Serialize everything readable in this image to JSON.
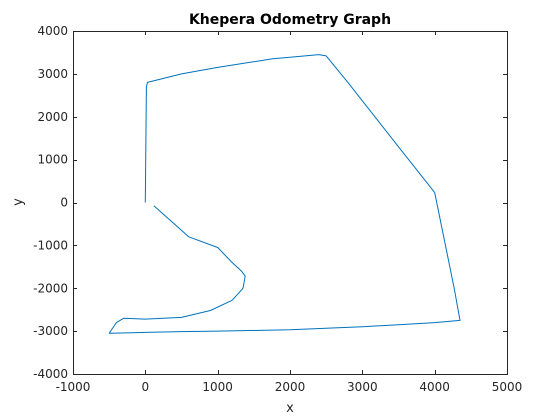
{
  "chart_data": {
    "type": "line",
    "title": "Khepera Odometry Graph",
    "xlabel": "x",
    "ylabel": "y",
    "xlim": [
      -1000,
      5000
    ],
    "ylim": [
      -4000,
      4000
    ],
    "xticks": [
      -1000,
      0,
      1000,
      2000,
      3000,
      4000,
      5000
    ],
    "yticks": [
      -4000,
      -3000,
      -2000,
      -1000,
      0,
      1000,
      2000,
      3000,
      4000
    ],
    "xtick_labels": [
      "-1000",
      "0",
      "1000",
      "2000",
      "3000",
      "4000",
      "5000"
    ],
    "ytick_labels": [
      "-4000",
      "-3000",
      "-2000",
      "-1000",
      "0",
      "1000",
      "2000",
      "3000",
      "4000"
    ],
    "grid": false,
    "line_color": "#0072bd",
    "series": [
      {
        "x": [
          0,
          15,
          30,
          500,
          1000,
          1750,
          2400,
          2500,
          2800,
          3500,
          4000,
          4270,
          4350,
          4000,
          3500,
          3000,
          2000,
          1000,
          500,
          0,
          -500,
          -480,
          -400,
          -300,
          0,
          500,
          900,
          1200,
          1350,
          1380,
          1330,
          1200,
          1000,
          600,
          120
        ],
        "y": [
          0,
          2700,
          2800,
          3000,
          3150,
          3350,
          3450,
          3420,
          2800,
          1300,
          230,
          -2000,
          -2750,
          -2800,
          -2850,
          -2900,
          -2970,
          -3000,
          -3010,
          -3030,
          -3050,
          -3000,
          -2800,
          -2700,
          -2720,
          -2680,
          -2520,
          -2280,
          -2000,
          -1720,
          -1600,
          -1400,
          -1050,
          -800,
          -80
        ]
      }
    ]
  }
}
